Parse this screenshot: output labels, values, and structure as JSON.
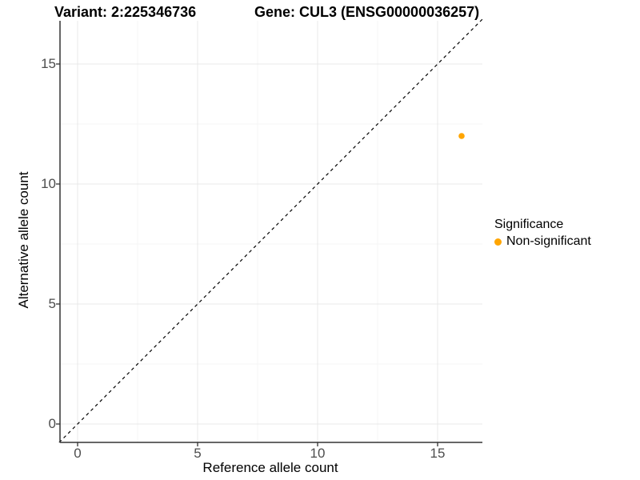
{
  "titles": {
    "variant": "Variant: 2:225346736",
    "gene": "Gene: CUL3 (ENSG00000036257)"
  },
  "axes": {
    "x": {
      "label": "Reference allele count",
      "ticks": [
        "0",
        "5",
        "10",
        "15"
      ]
    },
    "y": {
      "label": "Alternative allele count",
      "ticks": [
        "0",
        "5",
        "10",
        "15"
      ]
    }
  },
  "legend": {
    "title": "Significance",
    "items": [
      {
        "label": "Non-significant",
        "color": "#FFA500"
      }
    ]
  },
  "chart_data": {
    "type": "scatter",
    "title": "Variant: 2:225346736    Gene: CUL3 (ENSG00000036257)",
    "xlabel": "Reference allele count",
    "ylabel": "Alternative allele count",
    "xlim": [
      -0.77,
      16.87
    ],
    "ylim": [
      -0.77,
      16.87
    ],
    "x_ticks": [
      0,
      5,
      10,
      15
    ],
    "y_ticks": [
      0,
      5,
      10,
      15
    ],
    "grid": "major and minor gridlines, light gray on white panel",
    "legend_position": "right",
    "series": [
      {
        "name": "Non-significant",
        "color": "#FFA500",
        "points": [
          {
            "x": 16,
            "y": 12
          }
        ]
      }
    ],
    "reference_line": {
      "kind": "identity y=x",
      "style": "dashed",
      "color": "#000000"
    },
    "colors": {
      "grid_major": "#E8E8E8",
      "grid_minor": "#F3F3F3",
      "axis": "#333333",
      "tick_label": "#4D4D4D"
    }
  }
}
